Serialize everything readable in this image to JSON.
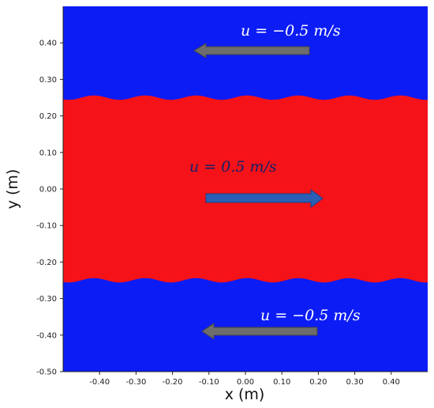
{
  "figure": {
    "xlabel": "x (m)",
    "ylabel": "y (m)",
    "x_ticks": [
      "-0.40",
      "-0.30",
      "-0.20",
      "-0.10",
      "0.00",
      "0.10",
      "0.20",
      "0.30",
      "0.40"
    ],
    "y_ticks": [
      "0.40",
      "0.30",
      "0.20",
      "0.10",
      "0.00",
      "-0.10",
      "-0.20",
      "-0.30",
      "-0.40",
      "-0.50"
    ],
    "xlim": [
      -0.5,
      0.5
    ],
    "ylim": [
      -0.5,
      0.5
    ],
    "interface_y": [
      0.25,
      -0.25
    ],
    "interface_amplitude": 0.006,
    "interface_wavelength": 0.14
  },
  "regions": {
    "outer_fluid_color": "#0c1cf5",
    "inner_fluid_color": "#f51218"
  },
  "annotations": {
    "top_velocity": "u = −0.5 m/s",
    "middle_velocity": "u = 0.5 m/s",
    "bottom_velocity": "u = −0.5 m/s",
    "top_arrow_direction": "left",
    "middle_arrow_direction": "right",
    "bottom_arrow_direction": "left",
    "gray_arrow_color": "#6d6d6d",
    "blue_arrow_color": "#2b5fb6",
    "white_text_color": "#ffffff",
    "dark_text_color": "#14206a"
  }
}
